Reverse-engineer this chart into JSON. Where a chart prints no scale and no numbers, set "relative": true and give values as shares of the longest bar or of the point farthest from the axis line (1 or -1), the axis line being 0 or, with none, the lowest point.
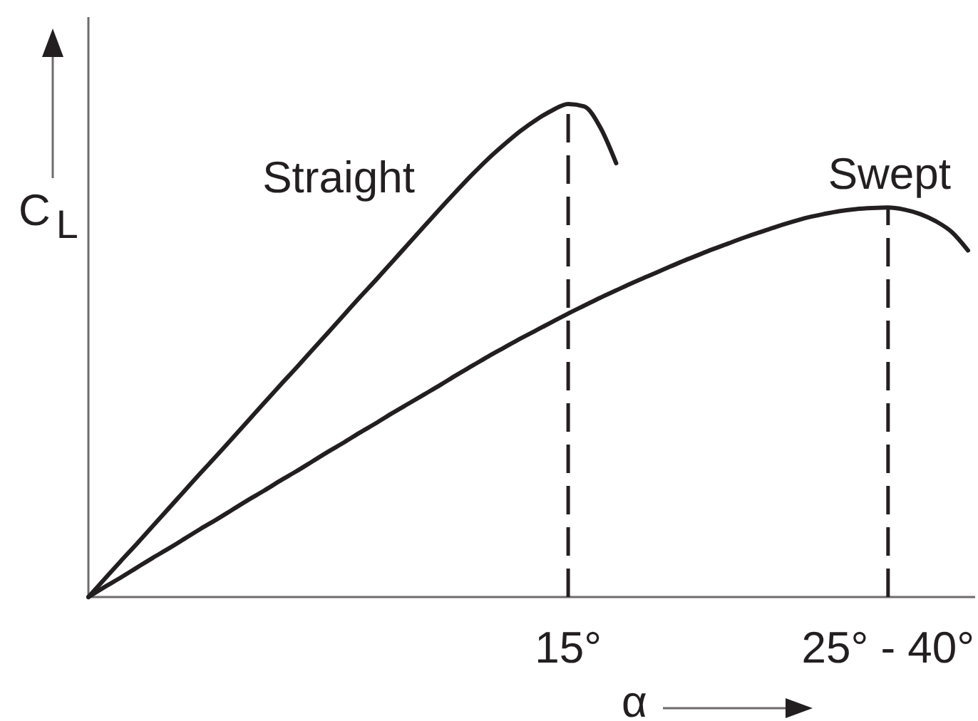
{
  "chart_data": {
    "type": "line",
    "xlabel": "α",
    "ylabel": "C$_{L}$",
    "relative": true,
    "categories": [
      null,
      null,
      null,
      null,
      null,
      null,
      null,
      null,
      null,
      null,
      null,
      null,
      null,
      null,
      null,
      null,
      null,
      null,
      null,
      null,
      null,
      null,
      null,
      null,
      null,
      null,
      null,
      null,
      null,
      null,
      "15°",
      null,
      null,
      null,
      null,
      null,
      null,
      null,
      null,
      null,
      null,
      null,
      null,
      null,
      null,
      null,
      null,
      null,
      null,
      null,
      "25° - 40°",
      null,
      null,
      null,
      null,
      null
    ],
    "grid": false,
    "legend": false,
    "marker": "none",
    "line_style": "solid",
    "series": [
      {
        "name": "Straight",
        "color": "#231f20",
        "values": [
          0,
          0.036,
          0.072,
          0.107,
          0.143,
          0.179,
          0.215,
          0.251,
          0.286,
          0.322,
          0.358,
          0.394,
          0.43,
          0.465,
          0.501,
          0.537,
          0.573,
          0.609,
          0.644,
          0.68,
          0.716,
          0.752,
          0.788,
          0.823,
          0.857,
          0.889,
          0.918,
          0.945,
          0.968,
          0.987,
          1,
          0.995,
          0.953,
          0.88,
          null,
          null,
          null,
          null,
          null,
          null,
          null,
          null,
          null,
          null,
          null,
          null,
          null,
          null,
          null,
          null,
          null,
          null,
          null,
          null,
          null,
          null
        ]
      },
      {
        "name": "Swept",
        "color": "#231f20",
        "values": [
          0,
          0.02,
          0.039,
          0.059,
          0.079,
          0.098,
          0.118,
          0.138,
          0.157,
          0.177,
          0.197,
          0.216,
          0.236,
          0.255,
          0.275,
          0.295,
          0.314,
          0.334,
          0.353,
          0.373,
          0.392,
          0.411,
          0.43,
          0.45,
          0.469,
          0.488,
          0.506,
          0.524,
          0.541,
          0.558,
          0.575,
          0.591,
          0.607,
          0.622,
          0.637,
          0.651,
          0.665,
          0.679,
          0.692,
          0.705,
          0.717,
          0.729,
          0.74,
          0.751,
          0.761,
          0.77,
          0.777,
          0.783,
          0.787,
          0.789,
          0.79,
          0.786,
          0.777,
          0.762,
          0.74,
          0.703
        ]
      }
    ],
    "ref_lines": [
      {
        "axis": "x",
        "value": "15°",
        "color": "#231f20",
        "line_style": "dashed"
      },
      {
        "axis": "x",
        "value": "25° - 40°",
        "color": "#231f20",
        "line_style": "dashed"
      }
    ]
  }
}
